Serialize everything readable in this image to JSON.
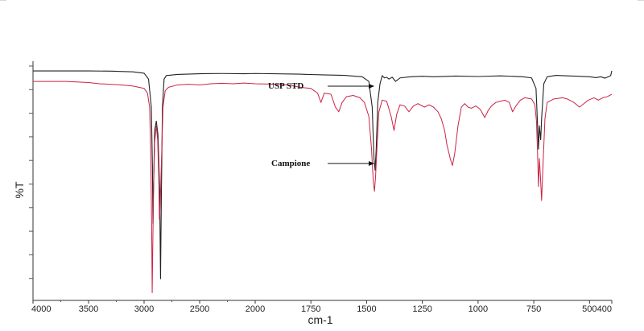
{
  "chart_data": {
    "type": "line",
    "title": "",
    "xlabel": "cm-1",
    "ylabel": "%T",
    "xlim": [
      4000,
      400
    ],
    "x_reversed": true,
    "y_ticks_labeled": false,
    "grid": false,
    "legend": "none",
    "x_tick_labels": [
      "4000",
      "3500",
      "3000",
      "2500",
      "2000",
      "1750",
      "1500",
      "1250",
      "1000",
      "750",
      "500",
      "400"
    ],
    "annotations": [
      {
        "text": "USP STD",
        "arrow_to_series": "USP STD",
        "arrow_to_x": 1460
      },
      {
        "text": "Campione",
        "arrow_to_series": "Campione",
        "arrow_to_x": 1460
      }
    ],
    "series": [
      {
        "name": "USP STD",
        "color": "#222222",
        "points": [
          [
            4000,
            95.5
          ],
          [
            3500,
            95.5
          ],
          [
            3300,
            95.4
          ],
          [
            3100,
            95.1
          ],
          [
            3000,
            94.5
          ],
          [
            2960,
            92.0
          ],
          [
            2935,
            80.0
          ],
          [
            2925,
            55.0
          ],
          [
            2920,
            30.0
          ],
          [
            2915,
            45.0
          ],
          [
            2905,
            70.0
          ],
          [
            2890,
            74.0
          ],
          [
            2875,
            68.0
          ],
          [
            2860,
            45.0
          ],
          [
            2852,
            6.5
          ],
          [
            2845,
            40.0
          ],
          [
            2835,
            80.0
          ],
          [
            2820,
            92.0
          ],
          [
            2800,
            93.5
          ],
          [
            2700,
            94.0
          ],
          [
            2500,
            94.3
          ],
          [
            2300,
            94.4
          ],
          [
            2100,
            94.3
          ],
          [
            2000,
            94.4
          ],
          [
            1800,
            94.1
          ],
          [
            1700,
            93.8
          ],
          [
            1600,
            93.6
          ],
          [
            1520,
            93.0
          ],
          [
            1490,
            91.0
          ],
          [
            1475,
            80.0
          ],
          [
            1467,
            58.0
          ],
          [
            1462,
            53.0
          ],
          [
            1457,
            62.0
          ],
          [
            1450,
            82.0
          ],
          [
            1440,
            90.0
          ],
          [
            1430,
            93.5
          ],
          [
            1420,
            92.5
          ],
          [
            1410,
            92.8
          ],
          [
            1400,
            92.0
          ],
          [
            1385,
            92.8
          ],
          [
            1370,
            91.0
          ],
          [
            1350,
            92.5
          ],
          [
            1300,
            93.0
          ],
          [
            1250,
            93.2
          ],
          [
            1200,
            93.0
          ],
          [
            1100,
            93.3
          ],
          [
            1000,
            93.1
          ],
          [
            900,
            93.4
          ],
          [
            800,
            93.0
          ],
          [
            760,
            92.5
          ],
          [
            740,
            88.0
          ],
          [
            733,
            72.0
          ],
          [
            729,
            62.0
          ],
          [
            725,
            72.0
          ],
          [
            719,
            66.0
          ],
          [
            715,
            75.0
          ],
          [
            705,
            90.0
          ],
          [
            690,
            93.0
          ],
          [
            650,
            93.6
          ],
          [
            600,
            93.4
          ],
          [
            550,
            93.2
          ],
          [
            500,
            93.0
          ],
          [
            470,
            92.6
          ],
          [
            450,
            93.0
          ],
          [
            430,
            92.4
          ],
          [
            415,
            93.0
          ],
          [
            405,
            93.5
          ],
          [
            400,
            95.5
          ]
        ]
      },
      {
        "name": "Campione",
        "color": "#cc2244",
        "points": [
          [
            4000,
            91.0
          ],
          [
            3700,
            91.0
          ],
          [
            3500,
            90.5
          ],
          [
            3400,
            90.0
          ],
          [
            3200,
            89.5
          ],
          [
            3100,
            89.0
          ],
          [
            3000,
            88.0
          ],
          [
            2970,
            86.0
          ],
          [
            2950,
            80.0
          ],
          [
            2940,
            60.0
          ],
          [
            2932,
            30.0
          ],
          [
            2927,
            0.5
          ],
          [
            2922,
            20.0
          ],
          [
            2915,
            45.0
          ],
          [
            2905,
            65.0
          ],
          [
            2890,
            72.0
          ],
          [
            2878,
            66.0
          ],
          [
            2868,
            50.0
          ],
          [
            2862,
            32.0
          ],
          [
            2855,
            38.0
          ],
          [
            2845,
            55.0
          ],
          [
            2830,
            80.0
          ],
          [
            2810,
            87.0
          ],
          [
            2780,
            88.5
          ],
          [
            2700,
            89.5
          ],
          [
            2600,
            89.8
          ],
          [
            2500,
            89.5
          ],
          [
            2400,
            90.0
          ],
          [
            2300,
            90.2
          ],
          [
            2200,
            90.0
          ],
          [
            2100,
            90.3
          ],
          [
            2000,
            90.0
          ],
          [
            1900,
            89.8
          ],
          [
            1850,
            89.5
          ],
          [
            1800,
            88.5
          ],
          [
            1750,
            88.0
          ],
          [
            1720,
            86.0
          ],
          [
            1705,
            82.0
          ],
          [
            1690,
            86.0
          ],
          [
            1660,
            85.5
          ],
          [
            1640,
            80.0
          ],
          [
            1625,
            78.0
          ],
          [
            1610,
            82.0
          ],
          [
            1590,
            84.5
          ],
          [
            1560,
            85.0
          ],
          [
            1530,
            84.0
          ],
          [
            1510,
            82.0
          ],
          [
            1490,
            76.0
          ],
          [
            1478,
            62.0
          ],
          [
            1470,
            48.0
          ],
          [
            1465,
            44.0
          ],
          [
            1460,
            50.0
          ],
          [
            1455,
            60.0
          ],
          [
            1445,
            78.0
          ],
          [
            1430,
            83.0
          ],
          [
            1410,
            82.5
          ],
          [
            1390,
            76.0
          ],
          [
            1377,
            70.0
          ],
          [
            1365,
            77.0
          ],
          [
            1350,
            81.0
          ],
          [
            1330,
            80.5
          ],
          [
            1310,
            78.0
          ],
          [
            1290,
            80.5
          ],
          [
            1270,
            81.5
          ],
          [
            1240,
            80.0
          ],
          [
            1220,
            81.0
          ],
          [
            1200,
            80.0
          ],
          [
            1180,
            78.0
          ],
          [
            1165,
            75.0
          ],
          [
            1150,
            70.0
          ],
          [
            1140,
            64.0
          ],
          [
            1125,
            58.0
          ],
          [
            1115,
            55.0
          ],
          [
            1105,
            60.0
          ],
          [
            1090,
            72.0
          ],
          [
            1075,
            80.0
          ],
          [
            1060,
            81.5
          ],
          [
            1045,
            80.0
          ],
          [
            1030,
            79.5
          ],
          [
            1010,
            80.5
          ],
          [
            990,
            79.0
          ],
          [
            970,
            75.5
          ],
          [
            955,
            78.5
          ],
          [
            940,
            80.5
          ],
          [
            920,
            82.0
          ],
          [
            900,
            82.5
          ],
          [
            880,
            83.0
          ],
          [
            860,
            82.0
          ],
          [
            845,
            78.0
          ],
          [
            830,
            80.5
          ],
          [
            810,
            83.0
          ],
          [
            790,
            84.0
          ],
          [
            760,
            83.5
          ],
          [
            745,
            81.0
          ],
          [
            738,
            74.0
          ],
          [
            733,
            60.0
          ],
          [
            729,
            46.0
          ],
          [
            725,
            58.0
          ],
          [
            720,
            50.0
          ],
          [
            715,
            40.0
          ],
          [
            710,
            52.0
          ],
          [
            700,
            75.0
          ],
          [
            690,
            82.0
          ],
          [
            660,
            83.5
          ],
          [
            620,
            84.0
          ],
          [
            600,
            83.5
          ],
          [
            570,
            82.0
          ],
          [
            545,
            80.0
          ],
          [
            525,
            81.5
          ],
          [
            505,
            83.0
          ],
          [
            480,
            84.0
          ],
          [
            460,
            83.0
          ],
          [
            440,
            84.0
          ],
          [
            420,
            84.5
          ],
          [
            400,
            85.5
          ]
        ]
      }
    ]
  }
}
